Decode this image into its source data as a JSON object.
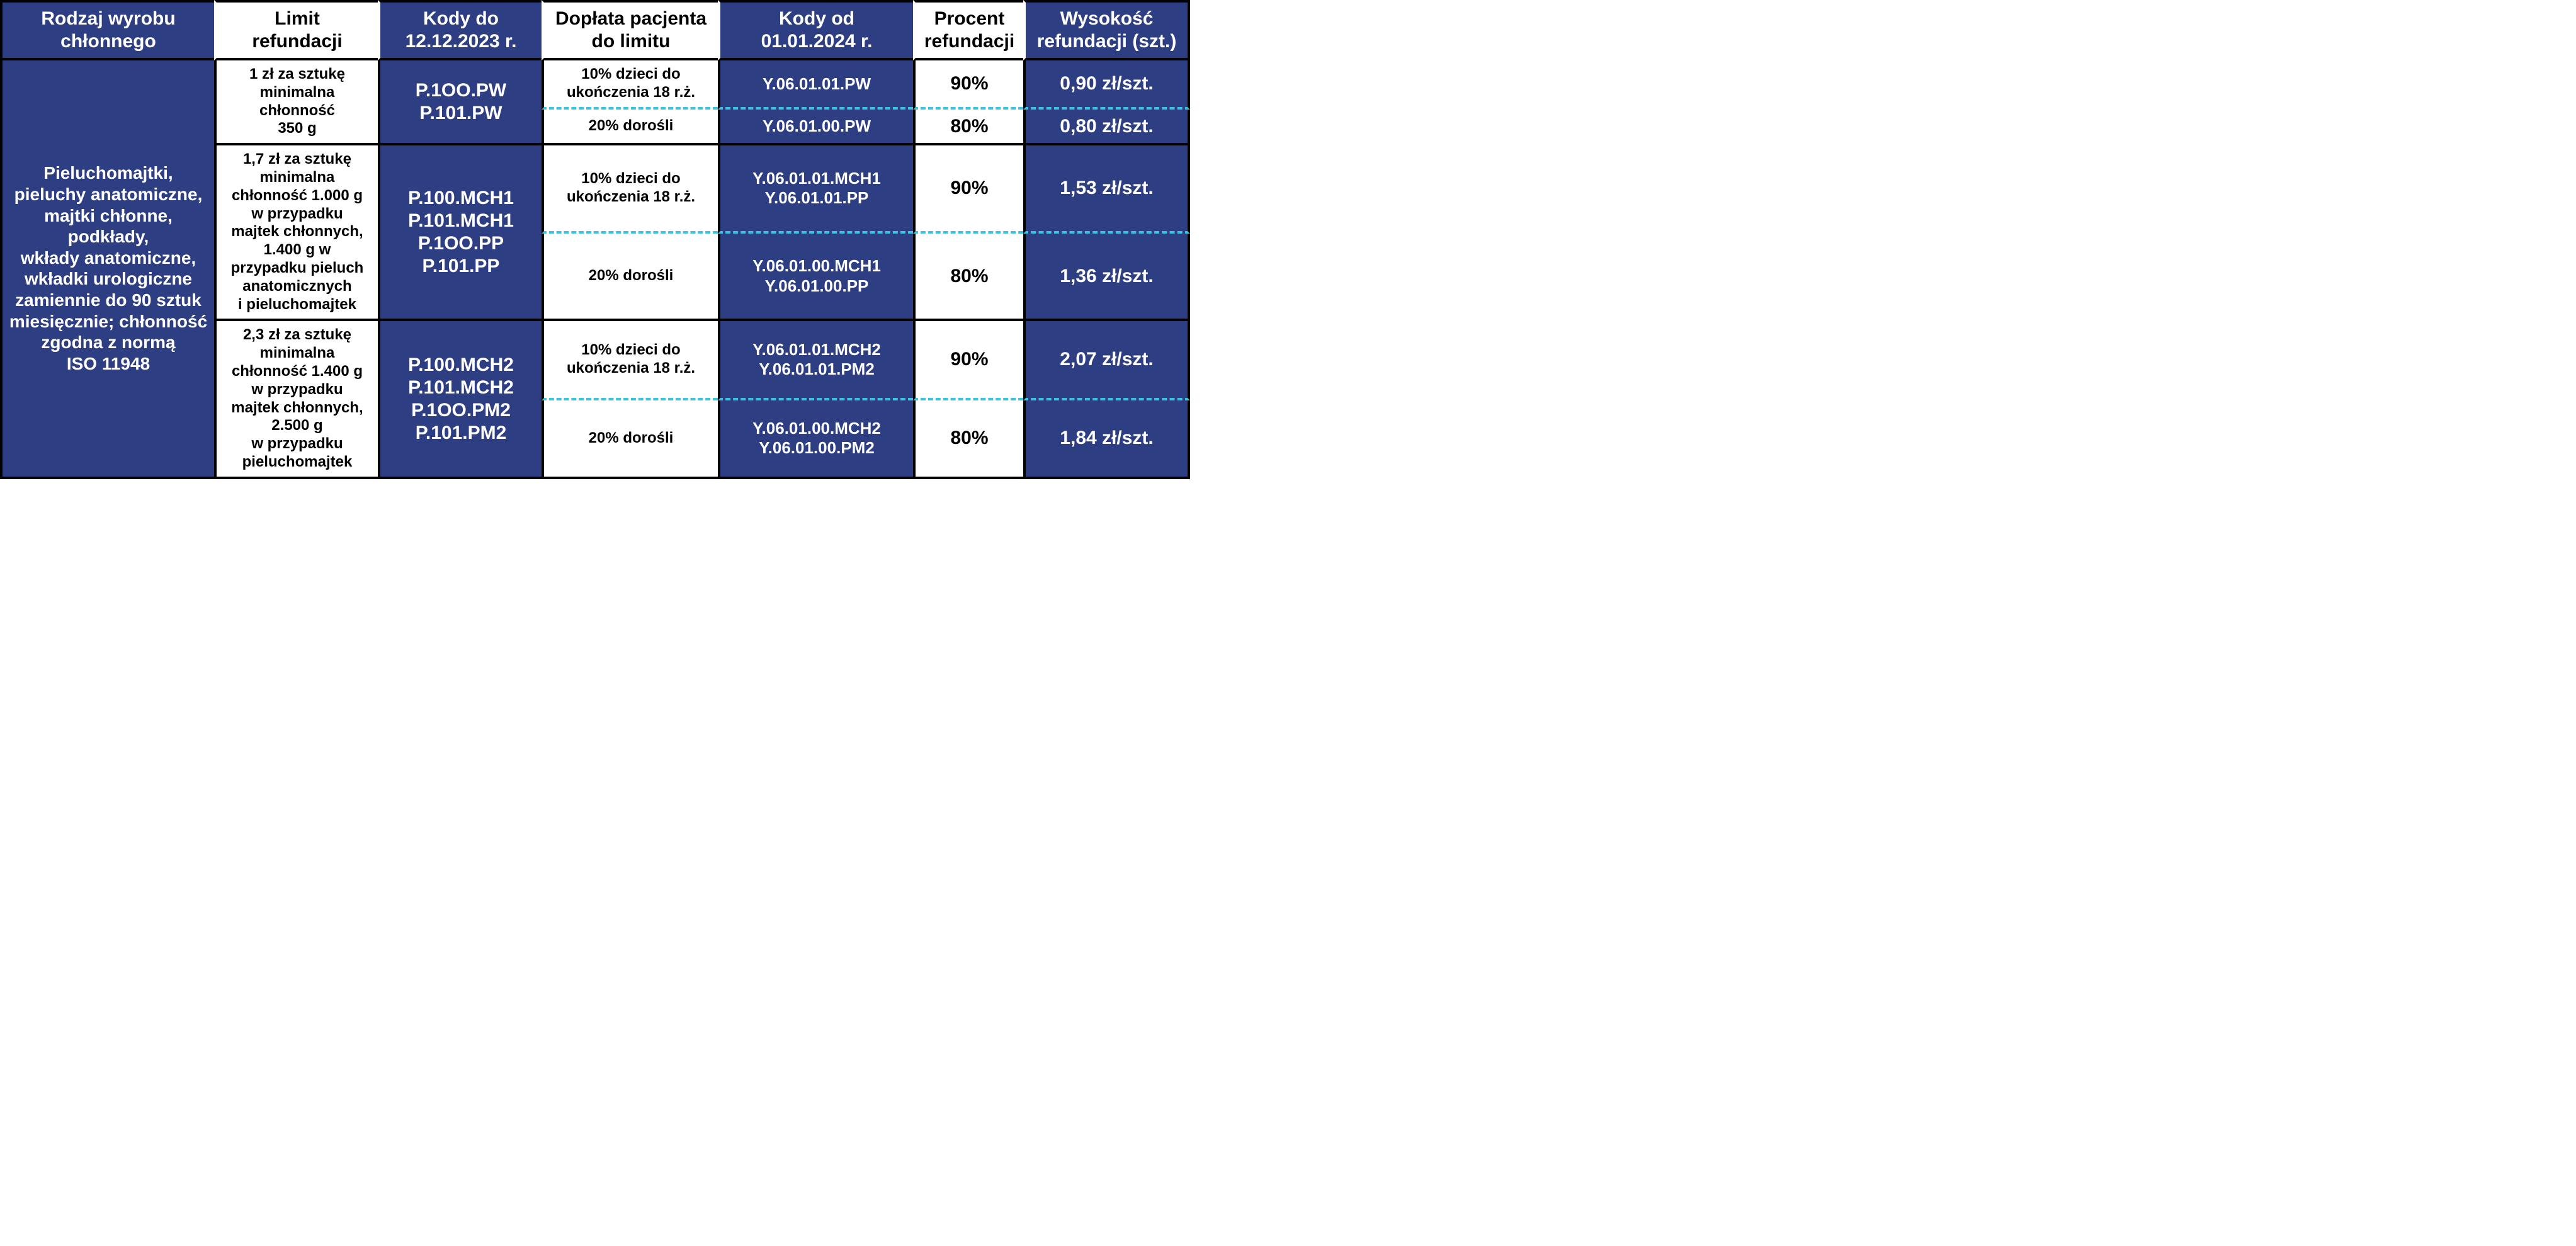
{
  "colors": {
    "blue": "#2e3e82",
    "cyan": "#3cc3e0",
    "black": "#000000",
    "white": "#ffffff"
  },
  "headers": {
    "c1": "Rodzaj wyrobu\nchłonnego",
    "c2": "Limit\nrefundacji",
    "c3": "Kody do\n12.12.2023 r.",
    "c4": "Dopłata pacjenta\ndo limitu",
    "c5": "Kody od\n01.01.2024 r.",
    "c6": "Procent\nrefundacji",
    "c7": "Wysokość\nrefundacji (szt.)"
  },
  "rowLabel": "Pieluchomajtki,\npieluchy anatomiczne,\nmajtki chłonne,\npodkłady,\nwkłady anatomiczne,\nwkładki urologiczne\nzamiennie do 90 sztuk\nmiesięcznie; chłonność\nzgodna z normą\nISO 11948",
  "groups": [
    {
      "limit": "1 zł za sztukę\nminimalna\nchłonność\n350 g",
      "oldCodes": "P.1OO.PW\nP.101.PW",
      "subs": [
        {
          "doplata": "10% dzieci do\nukończenia 18 r.ż.",
          "newCodes": "Y.06.01.01.PW",
          "pct": "90%",
          "amt": "0,90 zł/szt."
        },
        {
          "doplata": "20% dorośli",
          "newCodes": "Y.06.01.00.PW",
          "pct": "80%",
          "amt": "0,80 zł/szt."
        }
      ]
    },
    {
      "limit": "1,7 zł za sztukę\nminimalna\nchłonność 1.000 g\nw przypadku\nmajtek chłonnych,\n1.400 g w\nprzypadku pieluch\nanatomicznych\ni pieluchomajtek",
      "oldCodes": "P.100.MCH1\nP.101.MCH1\nP.1OO.PP\nP.101.PP",
      "subs": [
        {
          "doplata": "10% dzieci do\nukończenia 18 r.ż.",
          "newCodes": "Y.06.01.01.MCH1\nY.06.01.01.PP",
          "pct": "90%",
          "amt": "1,53 zł/szt."
        },
        {
          "doplata": "20% dorośli",
          "newCodes": "Y.06.01.00.MCH1\nY.06.01.00.PP",
          "pct": "80%",
          "amt": "1,36 zł/szt."
        }
      ]
    },
    {
      "limit": "2,3 zł za sztukę\nminimalna\nchłonność 1.400 g\nw przypadku\nmajtek chłonnych,\n2.500 g\nw przypadku\npieluchomajtek",
      "oldCodes": "P.100.MCH2\nP.101.MCH2\nP.1OO.PM2\nP.101.PM2",
      "subs": [
        {
          "doplata": "10% dzieci do\nukończenia 18 r.ż.",
          "newCodes": "Y.06.01.01.MCH2\nY.06.01.01.PM2",
          "pct": "90%",
          "amt": "2,07 zł/szt."
        },
        {
          "doplata": "20% dorośli",
          "newCodes": "Y.06.01.00.MCH2\nY.06.01.00.PM2",
          "pct": "80%",
          "amt": "1,84 zł/szt."
        }
      ]
    }
  ]
}
